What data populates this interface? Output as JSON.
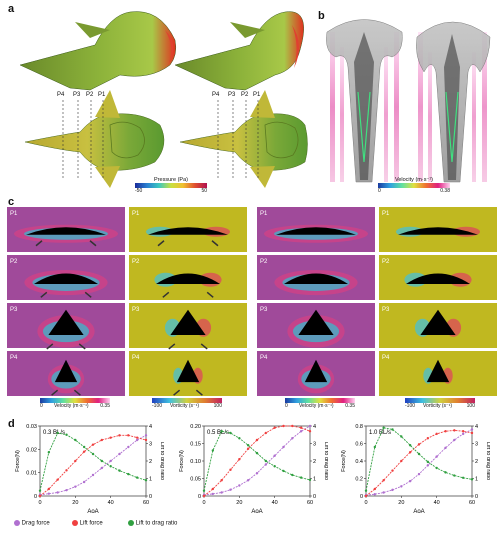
{
  "panel_labels": [
    "a",
    "b",
    "c",
    "d"
  ],
  "panel_a": {
    "section_labels": [
      "P4",
      "P3",
      "P2",
      "P1"
    ],
    "colorbar": {
      "title": "Pressure (Pa)",
      "min": "-50",
      "max": "50",
      "colors": [
        "#1a2a9a",
        "#2a80d0",
        "#3cc8c0",
        "#c8e040",
        "#f0c030",
        "#e05030",
        "#b01050"
      ]
    }
  },
  "panel_b": {
    "colorbar": {
      "title": "Velocity (m·s⁻¹)",
      "min": "0",
      "max": "0.38",
      "colors": [
        "#1a3aa0",
        "#30a0e0",
        "#60e0a0",
        "#e0e040",
        "#f07030",
        "#e02080",
        "#ffd0f0"
      ]
    }
  },
  "panel_c": {
    "row_tags": [
      "P1",
      "P2",
      "P3",
      "P4"
    ],
    "velocity_colorbar": {
      "title": "Velocity (m·s⁻¹)",
      "min": "0",
      "max": "0.35"
    },
    "vorticity_colorbar": {
      "title": "Vorticity (s⁻¹)",
      "min": "-100",
      "max": "100"
    },
    "velocity_bg": "#a04a9a",
    "vorticity_bg": "#c0b820"
  },
  "panel_d": {
    "left_axis_label": "Force(N)",
    "right_axis_label": "Lift to drag ratio",
    "x_axis_label": "AoA",
    "legend": [
      {
        "label": "Drag force",
        "color": "#b070d0"
      },
      {
        "label": "Lift force",
        "color": "#f04040"
      },
      {
        "label": "Lift to drag ratio",
        "color": "#30a040"
      }
    ]
  },
  "chart_data": [
    {
      "type": "line",
      "title": "0.3 BL/s",
      "xlabel": "AoA",
      "ylabel": "Force(N)",
      "y2label": "Lift to drag ratio",
      "x": [
        0,
        5,
        10,
        15,
        20,
        25,
        30,
        35,
        40,
        45,
        50,
        55,
        60
      ],
      "xlim": [
        0,
        60
      ],
      "ylim": [
        0,
        0.03
      ],
      "y2lim": [
        0,
        4
      ],
      "yticks": [
        "0",
        "0.01",
        "0.02",
        "0.03"
      ],
      "y2ticks": [
        "0",
        "1",
        "2",
        "3",
        "4"
      ],
      "xticks": [
        "0",
        "20",
        "40",
        "60"
      ],
      "series": [
        {
          "name": "Drag force",
          "axis": "left",
          "values": [
            0.0005,
            0.001,
            0.0015,
            0.0025,
            0.004,
            0.006,
            0.009,
            0.012,
            0.015,
            0.018,
            0.021,
            0.024,
            0.026
          ]
        },
        {
          "name": "Lift force",
          "axis": "left",
          "values": [
            0.0,
            0.003,
            0.007,
            0.011,
            0.015,
            0.019,
            0.022,
            0.024,
            0.025,
            0.026,
            0.026,
            0.025,
            0.024
          ]
        },
        {
          "name": "Lift to drag ratio",
          "axis": "right",
          "values": [
            0.3,
            2.5,
            3.6,
            3.5,
            3.2,
            2.8,
            2.4,
            2.0,
            1.7,
            1.45,
            1.25,
            1.05,
            0.9
          ]
        }
      ]
    },
    {
      "type": "line",
      "title": "0.5 BL/s",
      "xlabel": "AoA",
      "ylabel": "Force(N)",
      "y2label": "Lift to drag ratio",
      "x": [
        0,
        5,
        10,
        15,
        20,
        25,
        30,
        35,
        40,
        45,
        50,
        55,
        60
      ],
      "xlim": [
        0,
        60
      ],
      "ylim": [
        0,
        0.2
      ],
      "y2lim": [
        0,
        4
      ],
      "yticks": [
        "0",
        "0.05",
        "0.10",
        "0.15",
        "0.20"
      ],
      "y2ticks": [
        "0",
        "1",
        "2",
        "3",
        "4"
      ],
      "xticks": [
        "0",
        "20",
        "40",
        "60"
      ],
      "series": [
        {
          "name": "Drag force",
          "axis": "left",
          "values": [
            0.003,
            0.006,
            0.01,
            0.018,
            0.03,
            0.045,
            0.065,
            0.09,
            0.115,
            0.14,
            0.165,
            0.185,
            0.2
          ]
        },
        {
          "name": "Lift force",
          "axis": "left",
          "values": [
            0.0,
            0.02,
            0.045,
            0.075,
            0.105,
            0.135,
            0.16,
            0.18,
            0.195,
            0.2,
            0.2,
            0.195,
            0.185
          ]
        },
        {
          "name": "Lift to drag ratio",
          "axis": "right",
          "values": [
            0.3,
            2.6,
            3.7,
            3.6,
            3.3,
            2.9,
            2.45,
            2.0,
            1.7,
            1.43,
            1.2,
            1.05,
            0.92
          ]
        }
      ]
    },
    {
      "type": "line",
      "title": "1.0 BL/s",
      "xlabel": "AoA",
      "ylabel": "Force(N)",
      "y2label": "Lift to drag ratio",
      "x": [
        0,
        5,
        10,
        15,
        20,
        25,
        30,
        35,
        40,
        45,
        50,
        55,
        60
      ],
      "xlim": [
        0,
        60
      ],
      "ylim": [
        0,
        0.8
      ],
      "y2lim": [
        0,
        4
      ],
      "yticks": [
        "0",
        "0.2",
        "0.4",
        "0.6",
        "0.8"
      ],
      "y2ticks": [
        "0",
        "1",
        "2",
        "3",
        "4"
      ],
      "xticks": [
        "0",
        "20",
        "40",
        "60"
      ],
      "series": [
        {
          "name": "Drag force",
          "axis": "left",
          "values": [
            0.01,
            0.02,
            0.04,
            0.07,
            0.11,
            0.17,
            0.25,
            0.35,
            0.45,
            0.55,
            0.64,
            0.71,
            0.76
          ]
        },
        {
          "name": "Lift force",
          "axis": "left",
          "values": [
            0.0,
            0.08,
            0.18,
            0.29,
            0.4,
            0.5,
            0.59,
            0.66,
            0.71,
            0.74,
            0.75,
            0.74,
            0.72
          ]
        },
        {
          "name": "Lift to drag ratio",
          "axis": "right",
          "values": [
            0.3,
            2.8,
            3.9,
            3.8,
            3.4,
            2.9,
            2.4,
            1.95,
            1.6,
            1.35,
            1.17,
            1.04,
            0.95
          ]
        }
      ]
    }
  ]
}
